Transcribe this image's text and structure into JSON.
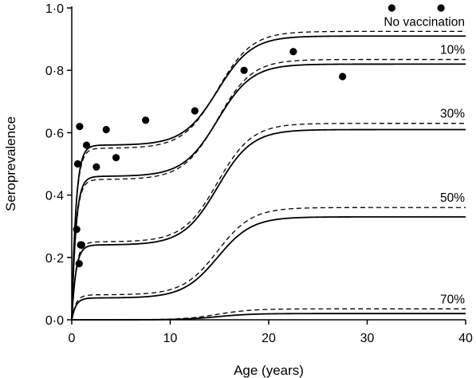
{
  "chart_data": {
    "type": "line",
    "xlabel": "Age (years)",
    "ylabel": "Seroprevalence",
    "xlim": [
      0,
      40
    ],
    "ylim": [
      0,
      1
    ],
    "x_ticks": [
      {
        "value": 0,
        "label": "0"
      },
      {
        "value": 10,
        "label": "10"
      },
      {
        "value": 20,
        "label": "20"
      },
      {
        "value": 30,
        "label": "30"
      },
      {
        "value": 40,
        "label": "40"
      }
    ],
    "y_ticks": [
      {
        "value": 0.0,
        "label": "0·0"
      },
      {
        "value": 0.2,
        "label": "0·2"
      },
      {
        "value": 0.4,
        "label": "0·4"
      },
      {
        "value": 0.6,
        "label": "0·6"
      },
      {
        "value": 0.8,
        "label": "0·8"
      },
      {
        "value": 1.0,
        "label": "1·0"
      }
    ],
    "grid": false,
    "legend": "none",
    "observed_points": {
      "x": [
        0.5,
        0.6,
        0.75,
        0.8,
        0.9,
        1.0,
        1.5,
        2.5,
        3.5,
        4.5,
        7.5,
        12.5,
        17.5,
        22.5,
        27.5,
        32.5,
        37.5
      ],
      "y": [
        0.29,
        0.5,
        0.18,
        0.62,
        0.24,
        0.24,
        0.56,
        0.49,
        0.61,
        0.52,
        0.64,
        0.67,
        0.8,
        0.86,
        0.78,
        1.0,
        1.0
      ]
    },
    "series": [
      {
        "name": "No vaccination",
        "solid": {
          "plateau": 0.56,
          "final": 0.91
        },
        "dashed": {
          "plateau": 0.55,
          "final": 0.925
        }
      },
      {
        "name": "10%",
        "solid": {
          "plateau": 0.46,
          "final": 0.82
        },
        "dashed": {
          "plateau": 0.45,
          "final": 0.835
        }
      },
      {
        "name": "30%",
        "solid": {
          "plateau": 0.24,
          "final": 0.61
        },
        "dashed": {
          "plateau": 0.25,
          "final": 0.63
        }
      },
      {
        "name": "50%",
        "solid": {
          "plateau": 0.07,
          "final": 0.33
        },
        "dashed": {
          "plateau": 0.08,
          "final": 0.36
        }
      },
      {
        "name": "70%",
        "solid": {
          "plateau": 0.0,
          "final": 0.02
        },
        "dashed": {
          "plateau": 0.0,
          "final": 0.035
        }
      }
    ]
  }
}
